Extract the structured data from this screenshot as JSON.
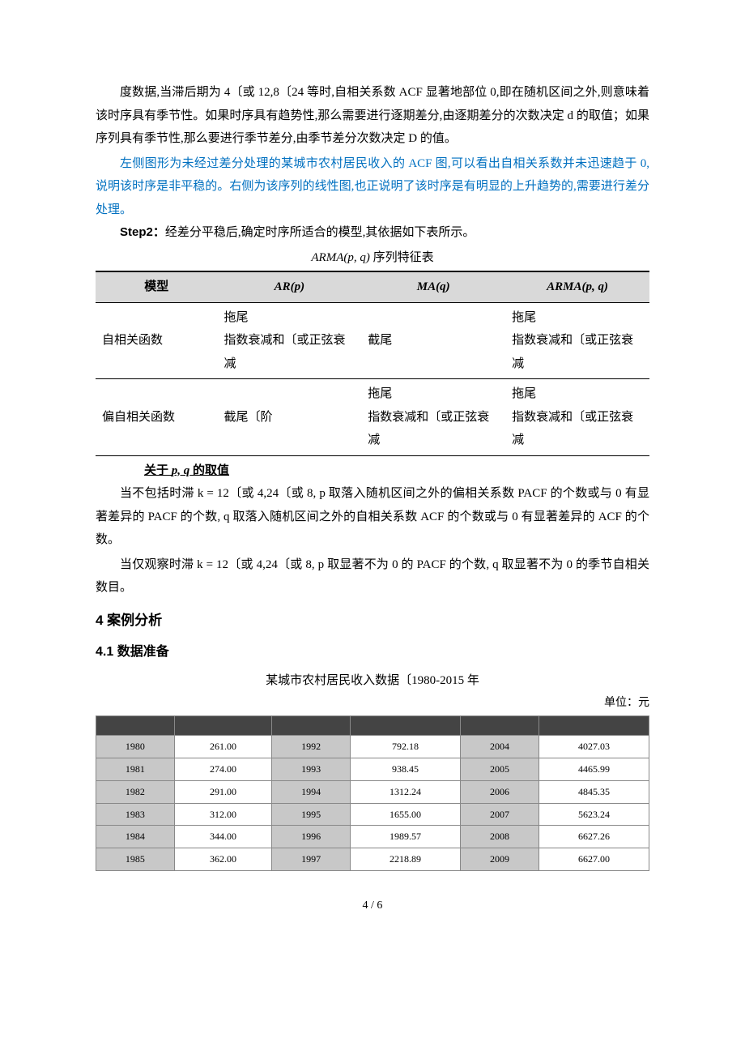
{
  "para1": "度数据,当滞后期为 4〔或 12,8〔24 等时,自相关系数 ACF 显著地部位 0,即在随机区间之外,则意味着该时序具有季节性。如果时序具有趋势性,那么需要进行逐期差分,由逐期差分的次数决定 d 的取值；如果序列具有季节性,那么要进行季节差分,由季节差分次数决定 D 的值。",
  "para2_blue": "左侧图形为未经过差分处理的某城市农村居民收入的 ACF 图,可以看出自相关系数并未迅速趋于 0,说明该时序是非平稳的。右侧为该序列的线性图,也正说明了该时序是有明显的上升趋势的,需要进行差分处理。",
  "step2_label": "Step2：",
  "step2_text": "经差分平稳后,确定时序所适合的模型,其依据如下表所示。",
  "feature_table": {
    "caption_prefix": "ARMA",
    "caption_args": "(p, q)",
    "caption_suffix": " 序列特征表",
    "headers": [
      "模型",
      "AR(p)",
      "MA(q)",
      "ARMA(p, q)"
    ],
    "rows": [
      {
        "label": "自相关函数",
        "arp": "拖尾\n指数衰减和〔或正弦衰减",
        "maq": "截尾",
        "arma": "拖尾\n指数衰减和〔或正弦衰减"
      },
      {
        "label": "偏自相关函数",
        "arp": "截尾〔阶",
        "maq": "拖尾\n指数衰减和〔或正弦衰减",
        "arma": "拖尾\n指数衰减和〔或正弦衰减"
      }
    ]
  },
  "pq_heading_prefix": "关于 ",
  "pq_heading_args": "p, q",
  "pq_heading_suffix": " 的取值",
  "para_pq1": "当不包括时滞 k = 12〔或 4,24〔或 8, p 取落入随机区间之外的偏相关系数 PACF 的个数或与 0 有显著差异的 PACF 的个数, q 取落入随机区间之外的自相关系数 ACF 的个数或与 0 有显著差异的 ACF 的个数。",
  "para_pq2": "当仅观察时滞 k = 12〔或 4,24〔或 8, p 取显著不为 0 的 PACF 的个数, q 取显著不为 0 的季节自相关数目。",
  "section4": "4 案例分析",
  "section41": "4.1 数据准备",
  "data_caption": "某城市农村居民收入数据〔1980-2015 年",
  "unit_label": "单位：元",
  "data_table": {
    "rows": [
      [
        "1980",
        "261.00",
        "1992",
        "792.18",
        "2004",
        "4027.03"
      ],
      [
        "1981",
        "274.00",
        "1993",
        "938.45",
        "2005",
        "4465.99"
      ],
      [
        "1982",
        "291.00",
        "1994",
        "1312.24",
        "2006",
        "4845.35"
      ],
      [
        "1983",
        "312.00",
        "1995",
        "1655.00",
        "2007",
        "5623.24"
      ],
      [
        "1984",
        "344.00",
        "1996",
        "1989.57",
        "2008",
        "6627.26"
      ],
      [
        "1985",
        "362.00",
        "1997",
        "2218.89",
        "2009",
        "6627.00"
      ]
    ]
  },
  "footer": "4 / 6"
}
